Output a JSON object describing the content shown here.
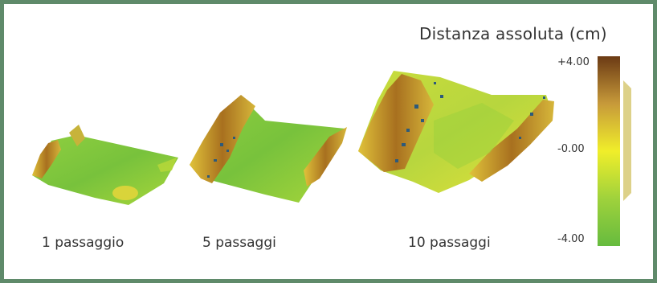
{
  "title": "Distanza assoluta (cm)",
  "panels": [
    {
      "label": "1 passaggio"
    },
    {
      "label": "5 passaggi"
    },
    {
      "label": "10 passaggi"
    }
  ],
  "colorbar": {
    "max_label": "+4.00",
    "mid_label": "-0.00",
    "min_label": "-4.00",
    "colors": {
      "high": "#6b3a14",
      "upper": "#c79a3a",
      "mid": "#f0ee2a",
      "lower": "#9fd23c",
      "low": "#66bb3e"
    }
  },
  "colors": {
    "frame": "#5f8a6a",
    "surface_green": "#7cc440",
    "ridge_brown": "#b8862a",
    "pothole_blue": "#2d5a7a"
  }
}
